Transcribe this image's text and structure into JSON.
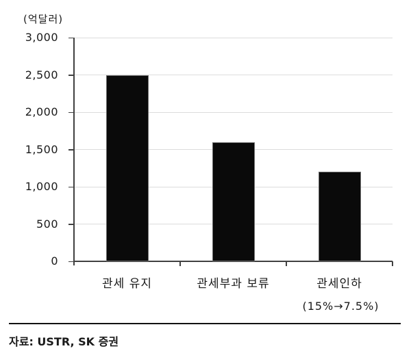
{
  "unit_label": "(억달러)",
  "source_text": "자료: USTR, SK 증권",
  "chart_data": {
    "type": "bar",
    "ylabel": "(억달러)",
    "categories": [
      "관세 유지",
      "관세부과 보류",
      "관세인하"
    ],
    "category_sublabels": [
      "",
      "",
      "(15%→7.5%)"
    ],
    "values": [
      2500,
      1600,
      1200
    ],
    "ylim": [
      0,
      3000
    ],
    "ytick_interval": 500,
    "ytick_labels": [
      "0",
      "500",
      "1,000",
      "1,500",
      "2,000",
      "2,500",
      "3,000"
    ],
    "grid": true,
    "legend": "none",
    "bar_color": "#0a0a0a",
    "gridline_color": "#dcdcdc",
    "axis_color": "#404040",
    "text_color": "#1a1a1a",
    "source": "자료: USTR, SK 증권"
  }
}
